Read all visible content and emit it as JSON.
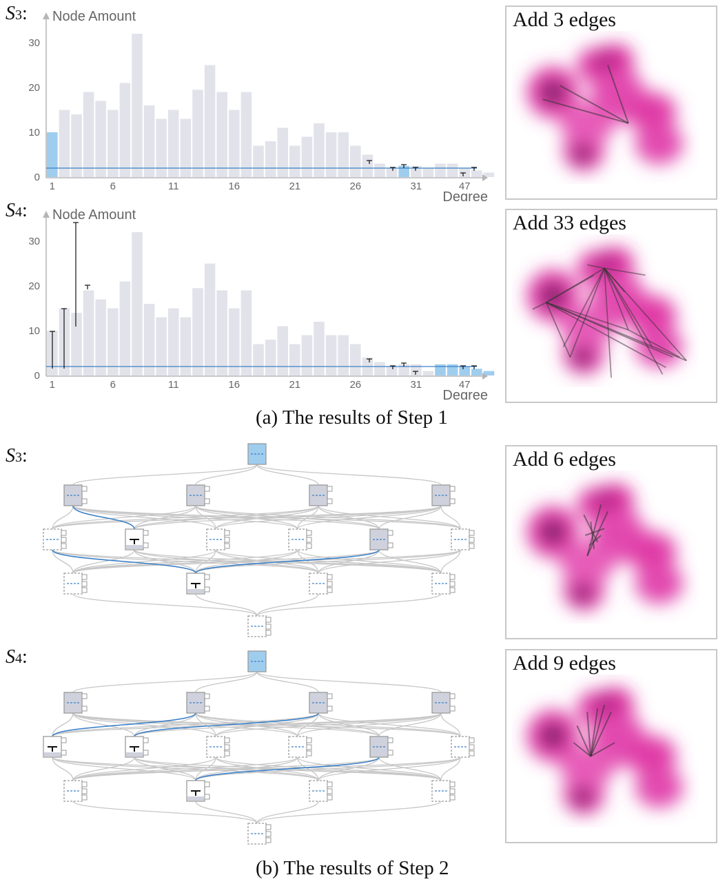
{
  "row_labels": {
    "a_s3": {
      "letter": "S",
      "num": "3"
    },
    "a_s4": {
      "letter": "S",
      "num": "4"
    },
    "b_s3": {
      "letter": "S",
      "num": "3"
    },
    "b_s4": {
      "letter": "S",
      "num": "4"
    }
  },
  "captions": {
    "step1": "(a) The results of Step 1",
    "step2": "(b) The results of Step 2"
  },
  "panels": {
    "p1": "Add 3 edges",
    "p2": "Add 33 edges",
    "p3": "Add 6 edges",
    "p4": "Add 9 edges"
  },
  "colors": {
    "bar": "#e2e3ea",
    "highlight": "#9fcdee",
    "line": "#3a80c8",
    "heat": "#d92a9b",
    "heat_dark": "#4a1c4f",
    "node_box": "#cfd2dc",
    "tree_link": "#c6c6c6",
    "tree_link_hl": "#3a80c8"
  },
  "chart_data": [
    {
      "type": "bar",
      "row": "S3",
      "ylabel": "Node Amount",
      "xlabel": "Degree",
      "ylim": [
        0,
        35
      ],
      "yticks": [
        0,
        10,
        20,
        30
      ],
      "xticks": [
        1,
        6,
        11,
        16,
        21,
        26,
        31,
        47
      ],
      "values": [
        10,
        15,
        14,
        19,
        17,
        15,
        21,
        32,
        16,
        13,
        15,
        13,
        19.5,
        25,
        19,
        15,
        19,
        7,
        8,
        11,
        7,
        9,
        12,
        10,
        10,
        7,
        5,
        3,
        2,
        2.5,
        2.5,
        2,
        3,
        3,
        2,
        1.5,
        1
      ],
      "highlight_indices": [
        0,
        29
      ],
      "reference_value": 2
    },
    {
      "type": "bar",
      "row": "S4",
      "ylabel": "Node Amount",
      "xlabel": "Degree",
      "ylim": [
        0,
        35
      ],
      "yticks": [
        0,
        10,
        20,
        30
      ],
      "xticks": [
        1,
        6,
        11,
        16,
        21,
        26,
        31,
        47
      ],
      "values": [
        10,
        15,
        14,
        19,
        17,
        15,
        21,
        32,
        16,
        13,
        15,
        13,
        19.5,
        25,
        19,
        15,
        19,
        7,
        8,
        11,
        7,
        9,
        12,
        9,
        9,
        7,
        4,
        3,
        2,
        2.5,
        2.5,
        1,
        2.5,
        2.5,
        2,
        1.5,
        1
      ],
      "highlight_indices": [
        32,
        33,
        34,
        35,
        36
      ],
      "reference_value": 2
    }
  ]
}
